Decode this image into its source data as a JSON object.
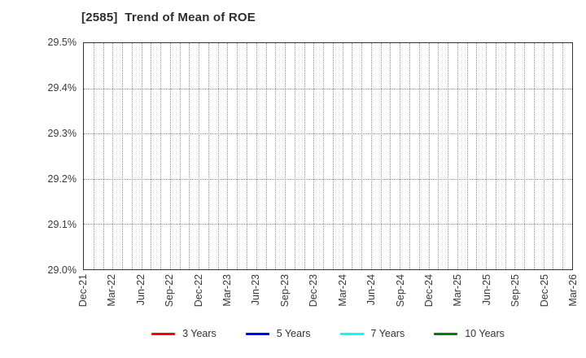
{
  "chart_data": {
    "type": "line",
    "title": "[2585]  Trend of Mean of ROE",
    "xlabel": "",
    "ylabel": "",
    "ylim": [
      29.0,
      29.5
    ],
    "y_tick_labels": [
      "29.5%",
      "29.4%",
      "29.3%",
      "29.2%",
      "29.1%",
      "29.0%"
    ],
    "x_tick_labels": [
      "Dec-21",
      "Mar-22",
      "Jun-22",
      "Sep-22",
      "Dec-22",
      "Mar-23",
      "Jun-23",
      "Sep-23",
      "Dec-23",
      "Mar-24",
      "Jun-24",
      "Sep-24",
      "Dec-24",
      "Mar-25",
      "Jun-25",
      "Sep-25",
      "Dec-25",
      "Mar-26"
    ],
    "months_per_x_tick": 3,
    "grid": "dotted, monthly vertical lines and 0.1% horizontal lines",
    "legend_position": "bottom center",
    "series": [
      {
        "name": "3 Years",
        "color": "#ff0000",
        "values": []
      },
      {
        "name": "5 Years",
        "color": "#0000ff",
        "values": []
      },
      {
        "name": "7 Years",
        "color": "#00ffff",
        "values": []
      },
      {
        "name": "10 Years",
        "color": "#008000",
        "values": []
      }
    ]
  },
  "colors": {
    "frame": "#333333",
    "gridline": "#9a9a9a",
    "tick_text": "#3a3a3a",
    "title_text": "#2e2e2e",
    "background": "#ffffff"
  }
}
